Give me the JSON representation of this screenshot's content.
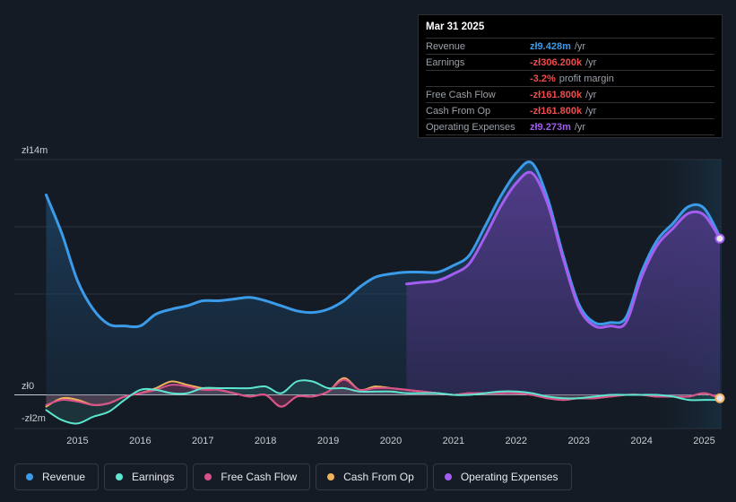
{
  "tooltip": {
    "date": "Mar 31 2025",
    "rows": [
      {
        "label": "Revenue",
        "value": "zł9.428m",
        "unit": "/yr",
        "color": "#3b9be8"
      },
      {
        "label": "Earnings",
        "value": "-zł306.200k",
        "unit": "/yr",
        "color": "#ef4c4c"
      },
      {
        "label": "",
        "value": "-3.2%",
        "unit": "profit margin",
        "color": "#ef4c4c"
      },
      {
        "label": "Free Cash Flow",
        "value": "-zł161.800k",
        "unit": "/yr",
        "color": "#ef4c4c"
      },
      {
        "label": "Cash From Op",
        "value": "-zł161.800k",
        "unit": "/yr",
        "color": "#ef4c4c"
      },
      {
        "label": "Operating Expenses",
        "value": "zł9.273m",
        "unit": "/yr",
        "color": "#a35ef0"
      }
    ]
  },
  "legend": [
    {
      "label": "Revenue",
      "color": "#3b9be8"
    },
    {
      "label": "Earnings",
      "color": "#5ce6d0"
    },
    {
      "label": "Free Cash Flow",
      "color": "#d9508c"
    },
    {
      "label": "Cash From Op",
      "color": "#f0b35a"
    },
    {
      "label": "Operating Expenses",
      "color": "#a35ef0"
    }
  ],
  "chart_data": {
    "type": "area",
    "title": "",
    "y_top_label": "zł14m",
    "y_zero_label": "zł0",
    "y_bottom_label": "-zł2m",
    "ylim": [
      -2,
      14
    ],
    "xlim": [
      2014.45,
      2025.25
    ],
    "x_tick_labels": [
      "2015",
      "2016",
      "2017",
      "2018",
      "2019",
      "2020",
      "2021",
      "2022",
      "2023",
      "2024",
      "2025"
    ],
    "x_tick_values": [
      2015,
      2016,
      2017,
      2018,
      2019,
      2020,
      2021,
      2022,
      2023,
      2024,
      2025
    ],
    "highlight_start": 2024.25,
    "series": [
      {
        "name": "Revenue",
        "color": "#3b9be8",
        "fill": true,
        "x": [
          2014.5,
          2014.75,
          2015.0,
          2015.25,
          2015.5,
          2015.75,
          2016.0,
          2016.25,
          2016.5,
          2016.75,
          2017.0,
          2017.25,
          2017.5,
          2017.75,
          2018.0,
          2018.25,
          2018.5,
          2018.75,
          2019.0,
          2019.25,
          2019.5,
          2019.75,
          2020.0,
          2020.25,
          2020.5,
          2020.75,
          2021.0,
          2021.25,
          2021.5,
          2021.75,
          2022.0,
          2022.25,
          2022.5,
          2022.75,
          2023.0,
          2023.25,
          2023.5,
          2023.75,
          2024.0,
          2024.25,
          2024.5,
          2024.75,
          2025.0,
          2025.25
        ],
        "values": [
          11.9,
          9.6,
          6.8,
          5.1,
          4.2,
          4.1,
          4.1,
          4.8,
          5.1,
          5.3,
          5.6,
          5.6,
          5.7,
          5.8,
          5.6,
          5.3,
          5.0,
          4.9,
          5.1,
          5.6,
          6.4,
          7.0,
          7.2,
          7.3,
          7.3,
          7.3,
          7.7,
          8.3,
          10.0,
          11.8,
          13.2,
          13.8,
          11.7,
          8.3,
          5.4,
          4.3,
          4.3,
          4.6,
          7.3,
          9.2,
          10.2,
          11.2,
          11.1,
          9.4
        ]
      },
      {
        "name": "Operating Expenses",
        "color": "#a35ef0",
        "fill": true,
        "x": [
          2020.25,
          2020.5,
          2020.75,
          2021.0,
          2021.25,
          2021.5,
          2021.75,
          2022.0,
          2022.25,
          2022.5,
          2022.75,
          2023.0,
          2023.25,
          2023.5,
          2023.75,
          2024.0,
          2024.25,
          2024.5,
          2024.75,
          2025.0,
          2025.25
        ],
        "values": [
          6.6,
          6.7,
          6.8,
          7.2,
          7.8,
          9.4,
          11.2,
          12.6,
          13.2,
          11.4,
          8.1,
          5.2,
          4.1,
          4.1,
          4.3,
          7.0,
          8.9,
          9.9,
          10.8,
          10.7,
          9.3
        ]
      },
      {
        "name": "Earnings",
        "color": "#5ce6d0",
        "fill": false,
        "x": [
          2014.5,
          2014.75,
          2015.0,
          2015.25,
          2015.5,
          2015.75,
          2016.0,
          2016.25,
          2016.5,
          2016.75,
          2017.0,
          2017.25,
          2017.5,
          2017.75,
          2018.0,
          2018.25,
          2018.5,
          2018.75,
          2019.0,
          2019.25,
          2019.5,
          2019.75,
          2020.0,
          2020.25,
          2020.5,
          2020.75,
          2021.0,
          2021.25,
          2021.5,
          2021.75,
          2022.0,
          2022.25,
          2022.5,
          2022.75,
          2023.0,
          2023.25,
          2023.5,
          2023.75,
          2024.0,
          2024.25,
          2024.5,
          2024.75,
          2025.0,
          2025.25
        ],
        "values": [
          -0.9,
          -1.5,
          -1.7,
          -1.3,
          -1.0,
          -0.3,
          0.3,
          0.3,
          0.1,
          0.1,
          0.4,
          0.4,
          0.4,
          0.4,
          0.5,
          0.1,
          0.8,
          0.8,
          0.4,
          0.4,
          0.2,
          0.2,
          0.2,
          0.1,
          0.1,
          0.1,
          0.0,
          0.0,
          0.1,
          0.2,
          0.2,
          0.1,
          -0.1,
          -0.2,
          -0.2,
          -0.1,
          0.0,
          0.0,
          0.0,
          0.0,
          -0.1,
          -0.3,
          -0.3,
          -0.3
        ]
      },
      {
        "name": "Cash From Op",
        "color": "#f0b35a",
        "fill": false,
        "x": [
          2014.5,
          2014.75,
          2015.0,
          2015.25,
          2015.5,
          2015.75,
          2016.0,
          2016.25,
          2016.5,
          2016.75,
          2017.0,
          2017.25,
          2017.5,
          2017.75,
          2018.0,
          2018.25,
          2018.5,
          2018.75,
          2019.0,
          2019.25,
          2019.5,
          2019.75,
          2020.0,
          2020.25,
          2020.5,
          2020.75,
          2021.0,
          2021.25,
          2021.5,
          2021.75,
          2022.0,
          2022.25,
          2022.5,
          2022.75,
          2023.0,
          2023.25,
          2023.5,
          2023.75,
          2024.0,
          2024.25,
          2024.5,
          2024.75,
          2025.0,
          2025.25
        ],
        "values": [
          -0.7,
          -0.2,
          -0.3,
          -0.6,
          -0.5,
          -0.1,
          0.1,
          0.4,
          0.8,
          0.6,
          0.4,
          0.3,
          0.1,
          -0.1,
          0.0,
          -0.7,
          -0.1,
          -0.1,
          0.2,
          1.0,
          0.3,
          0.5,
          0.4,
          0.3,
          0.2,
          0.1,
          0.0,
          0.1,
          0.1,
          0.1,
          0.1,
          0.0,
          -0.2,
          -0.3,
          -0.2,
          -0.2,
          -0.1,
          0.0,
          0.0,
          -0.1,
          -0.1,
          -0.1,
          0.1,
          -0.2
        ]
      },
      {
        "name": "Free Cash Flow",
        "color": "#d9508c",
        "fill": false,
        "x": [
          2014.5,
          2014.75,
          2015.0,
          2015.25,
          2015.5,
          2015.75,
          2016.0,
          2016.25,
          2016.5,
          2016.75,
          2017.0,
          2017.25,
          2017.5,
          2017.75,
          2018.0,
          2018.25,
          2018.5,
          2018.75,
          2019.0,
          2019.25,
          2019.5,
          2019.75,
          2020.0,
          2020.25,
          2020.5,
          2020.75,
          2021.0,
          2021.25,
          2021.5,
          2021.75,
          2022.0,
          2022.25,
          2022.5,
          2022.75,
          2023.0,
          2023.25,
          2023.5,
          2023.75,
          2024.0,
          2024.25,
          2024.5,
          2024.75,
          2025.0,
          2025.25
        ],
        "values": [
          -0.6,
          -0.3,
          -0.4,
          -0.6,
          -0.5,
          -0.1,
          0.1,
          0.3,
          0.6,
          0.5,
          0.3,
          0.3,
          0.1,
          -0.1,
          0.0,
          -0.7,
          -0.1,
          -0.1,
          0.2,
          0.9,
          0.3,
          0.4,
          0.4,
          0.3,
          0.2,
          0.1,
          0.0,
          0.1,
          0.1,
          0.1,
          0.1,
          0.0,
          -0.2,
          -0.3,
          -0.2,
          -0.2,
          -0.1,
          0.0,
          0.0,
          -0.1,
          -0.1,
          -0.1,
          0.1,
          -0.2
        ]
      }
    ]
  }
}
